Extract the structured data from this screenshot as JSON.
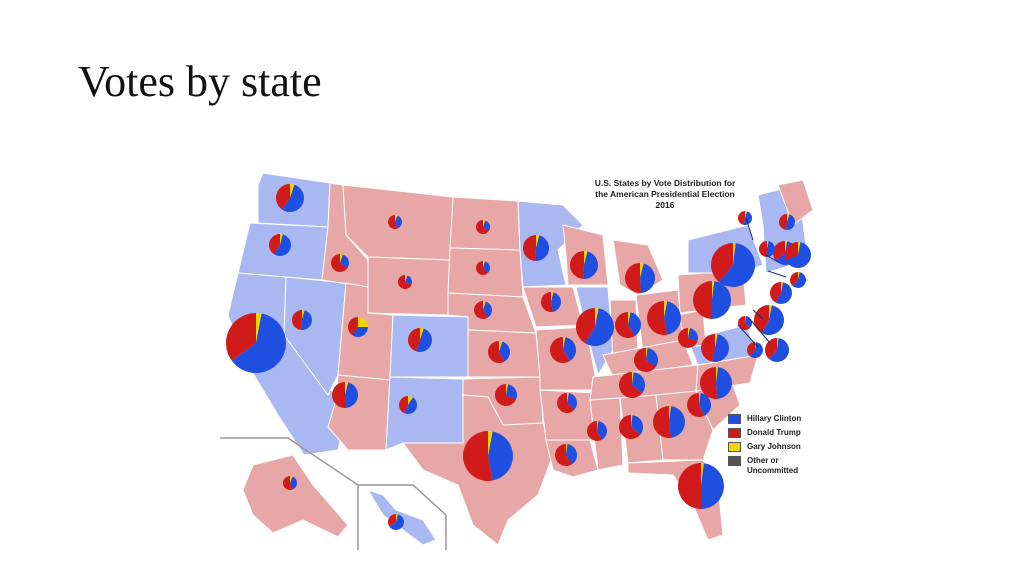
{
  "slide": {
    "title": "Votes by state"
  },
  "map": {
    "title_lines": [
      "U.S. States by Vote Distribution for",
      "the American Presidential Election",
      "2016"
    ],
    "colors": {
      "clinton": "#1f4fe0",
      "trump": "#d11a1a",
      "johnson": "#f2d400",
      "other": "#555555",
      "dem_state": "#aab8f2",
      "rep_state": "#e8a7a7",
      "border": "#ffffff"
    },
    "legend": [
      {
        "label": "Hillary Clinton",
        "color": "#1f4fe0"
      },
      {
        "label": "Donald Trump",
        "color": "#d11a1a"
      },
      {
        "label": "Gary Johnson",
        "color": "#f2d400"
      },
      {
        "label": "Other or Uncommitted",
        "color": "#555555"
      }
    ]
  }
}
